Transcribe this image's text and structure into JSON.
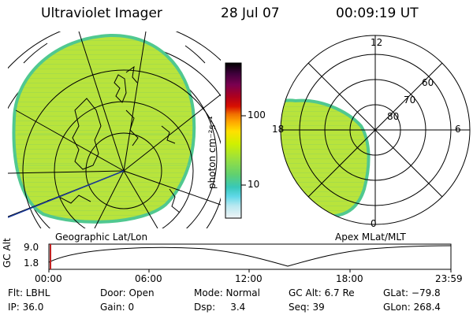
{
  "header": {
    "instrument": "Ultraviolet Imager",
    "date": "28 Jul 07",
    "time": "00:09:19 UT"
  },
  "left_panel": {
    "caption": "Geographic Lat/Lon"
  },
  "right_panel": {
    "caption": "Apex MLat/MLT",
    "mlt_labels": [
      "12",
      "18",
      "6",
      "0"
    ],
    "mlat_labels": [
      "60",
      "70",
      "80"
    ]
  },
  "colorbar": {
    "unit_label": "photon cm⁻²s⁻¹",
    "tick_labels": [
      "100",
      "10"
    ],
    "colors": [
      "#000000",
      "#3a003a",
      "#6a0050",
      "#9a0030",
      "#c8001c",
      "#e85000",
      "#ff9a00",
      "#ffe000",
      "#d8f000",
      "#a8e838",
      "#70d870",
      "#3ac8b8",
      "#60d8e8",
      "#b0e8f0",
      "#e8f0f4"
    ]
  },
  "altitude_strip": {
    "ylabel": "GC Alt",
    "y_ticks": [
      "9.0",
      "1.8"
    ],
    "x_ticks": [
      "00:00",
      "06:00",
      "12:00",
      "18:00",
      "23:59"
    ]
  },
  "info": {
    "filter": "Flt: LBHL",
    "door": "Door: Open",
    "mode": "Mode: Normal",
    "gc_alt": "GC Alt: 6.7 Re",
    "glat": "GLat: −79.8",
    "ip": "IP: 36.0",
    "gain": "Gain:  0",
    "dsp": "Dsp:     3.4",
    "seq": "Seq: 39",
    "glon": "GLon: 268.4"
  },
  "colors": {
    "aurora_main": "#b8e43c",
    "aurora_edge": "#50c890",
    "track": "#000000",
    "marker": "#c02020"
  }
}
